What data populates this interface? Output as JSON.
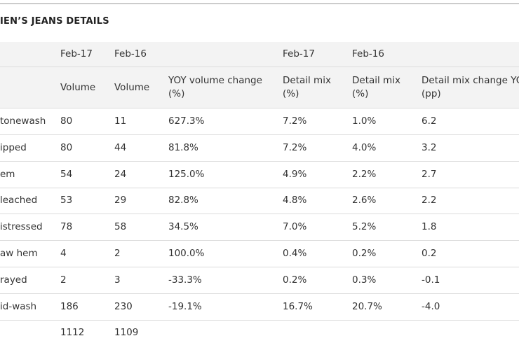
{
  "title": "IEN’S JEANS DETAILS",
  "table": {
    "header_rows": [
      [
        "",
        "Feb-17",
        "Feb-16",
        "",
        "Feb-17",
        "Feb-16",
        ""
      ],
      [
        "",
        "Volume",
        "Volume",
        "YOY volume change (%)",
        "Detail mix (%)",
        "Detail mix (%)",
        "Detail mix change YO (pp)"
      ]
    ],
    "rows": [
      [
        "tonewash",
        "80",
        "11",
        "627.3%",
        "7.2%",
        "1.0%",
        "6.2"
      ],
      [
        "ipped",
        "80",
        "44",
        "81.8%",
        "7.2%",
        "4.0%",
        "3.2"
      ],
      [
        "em",
        "54",
        "24",
        "125.0%",
        "4.9%",
        "2.2%",
        "2.7"
      ],
      [
        "leached",
        "53",
        "29",
        "82.8%",
        "4.8%",
        "2.6%",
        "2.2"
      ],
      [
        "istressed",
        "78",
        "58",
        "34.5%",
        "7.0%",
        "5.2%",
        "1.8"
      ],
      [
        "aw hem",
        "4",
        "2",
        "100.0%",
        "0.4%",
        "0.2%",
        "0.2"
      ],
      [
        "rayed",
        "2",
        "3",
        "-33.3%",
        "0.2%",
        "0.3%",
        "-0.1"
      ],
      [
        "id-wash",
        "186",
        "230",
        "-19.1%",
        "16.7%",
        "20.7%",
        "-4.0"
      ],
      [
        "",
        "1112",
        "1109",
        "",
        "",
        "",
        ""
      ]
    ]
  }
}
